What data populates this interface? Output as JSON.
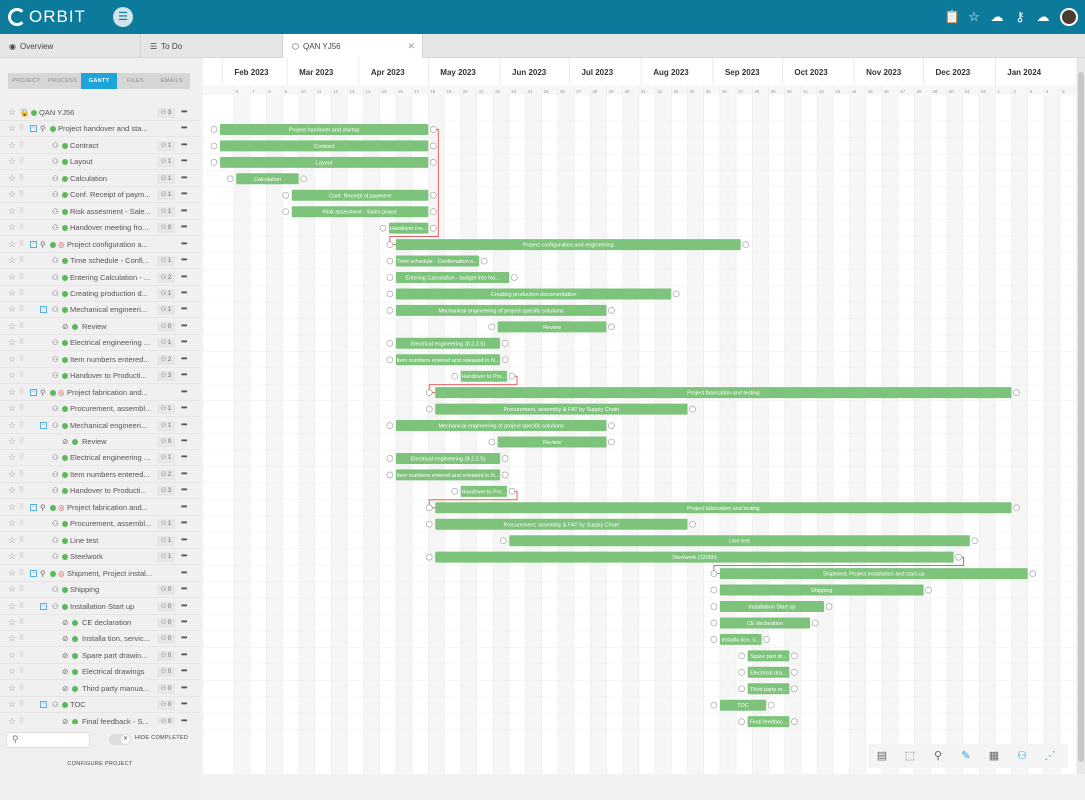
{
  "app": {
    "logo_text": "ORBIT",
    "accent": "#0b7a9b",
    "bar_color": "#7dc37b",
    "link_color": "#e05050"
  },
  "header_icons": [
    "clipboard-icon",
    "star-icon",
    "cloud-icon",
    "key-icon",
    "cloud-upload-icon"
  ],
  "tabs": [
    {
      "label": "Overview",
      "icon": "eye-icon"
    },
    {
      "label": "To Do",
      "icon": "list-icon"
    },
    {
      "label": "QAN YJ56",
      "icon": "cube-icon",
      "active": true
    }
  ],
  "subtabs": [
    "PROJECT",
    "PROCESS",
    "GANTT",
    "FILES",
    "EMAILS"
  ],
  "active_subtab": "GANTT",
  "months": [
    "Feb 2023",
    "Mar 2023",
    "Apr 2023",
    "May 2023",
    "Jun 2023",
    "Jul 2023",
    "Aug 2023",
    "Sep 2023",
    "Oct 2023",
    "Nov 2023",
    "Dec 2023",
    "Jan 2024"
  ],
  "weeks": [
    "6",
    "7",
    "8",
    "9",
    "10",
    "11",
    "12",
    "13",
    "14",
    "15",
    "16",
    "17",
    "18",
    "19",
    "20",
    "21",
    "22",
    "23",
    "24",
    "25",
    "26",
    "27",
    "28",
    "29",
    "30",
    "31",
    "32",
    "33",
    "34",
    "35",
    "36",
    "37",
    "38",
    "39",
    "40",
    "41",
    "42",
    "43",
    "44",
    "45",
    "46",
    "47",
    "48",
    "49",
    "50",
    "51",
    "52",
    "1",
    "2",
    "3",
    "4",
    "5"
  ],
  "rows": [
    {
      "label": "QAN YJ56",
      "count": "3",
      "indent": 0,
      "kind": "project"
    },
    {
      "label": "Project handover and sta...",
      "count": "",
      "indent": 1,
      "kind": "phase"
    },
    {
      "label": "Contract",
      "count": "1",
      "indent": 2,
      "kind": "task"
    },
    {
      "label": "Layout",
      "count": "1",
      "indent": 2,
      "kind": "task"
    },
    {
      "label": "Calculation",
      "count": "1",
      "indent": 2,
      "kind": "task"
    },
    {
      "label": "Conf. Receipt of paym...",
      "count": "1",
      "indent": 2,
      "kind": "task"
    },
    {
      "label": "Risk assesment - Sale...",
      "count": "1",
      "indent": 2,
      "kind": "task"
    },
    {
      "label": "Handover meeting fro...",
      "count": "0",
      "indent": 2,
      "kind": "task"
    },
    {
      "label": "Project configuration a...",
      "count": "",
      "indent": 1,
      "kind": "phase-red"
    },
    {
      "label": "Time schedule - Confi...",
      "count": "1",
      "indent": 2,
      "kind": "task"
    },
    {
      "label": "Entering Calculation - ...",
      "count": "2",
      "indent": 2,
      "kind": "task"
    },
    {
      "label": "Creating production d...",
      "count": "1",
      "indent": 2,
      "kind": "task"
    },
    {
      "label": "Mechanical engineeri...",
      "count": "1",
      "indent": 2,
      "kind": "subphase"
    },
    {
      "label": "Review",
      "count": "0",
      "indent": 3,
      "kind": "review"
    },
    {
      "label": "Electrical engineering ...",
      "count": "1",
      "indent": 2,
      "kind": "task"
    },
    {
      "label": "Item numbers entered...",
      "count": "2",
      "indent": 2,
      "kind": "task"
    },
    {
      "label": "Handover to Producti...",
      "count": "3",
      "indent": 2,
      "kind": "task"
    },
    {
      "label": "Project fabrication and...",
      "count": "",
      "indent": 1,
      "kind": "phase-red"
    },
    {
      "label": "Procurement, assembl...",
      "count": "1",
      "indent": 2,
      "kind": "task"
    },
    {
      "label": "Mechanical engineeri...",
      "count": "1",
      "indent": 2,
      "kind": "subphase"
    },
    {
      "label": "Review",
      "count": "0",
      "indent": 3,
      "kind": "review"
    },
    {
      "label": "Electrical engineering ...",
      "count": "1",
      "indent": 2,
      "kind": "task"
    },
    {
      "label": "Item numbers entered...",
      "count": "2",
      "indent": 2,
      "kind": "task"
    },
    {
      "label": "Handover to Producti...",
      "count": "3",
      "indent": 2,
      "kind": "task"
    },
    {
      "label": "Project fabrication and...",
      "count": "",
      "indent": 1,
      "kind": "phase-red"
    },
    {
      "label": "Procurement, assembl...",
      "count": "1",
      "indent": 2,
      "kind": "task"
    },
    {
      "label": "Line test",
      "count": "1",
      "indent": 2,
      "kind": "task"
    },
    {
      "label": "Steelwork",
      "count": "1",
      "indent": 2,
      "kind": "task"
    },
    {
      "label": "Shipment, Project instal...",
      "count": "",
      "indent": 1,
      "kind": "phase-red"
    },
    {
      "label": "Shipping",
      "count": "0",
      "indent": 2,
      "kind": "task"
    },
    {
      "label": "Installation Start up",
      "count": "0",
      "indent": 2,
      "kind": "subphase"
    },
    {
      "label": "CE declaration",
      "count": "0",
      "indent": 3,
      "kind": "review"
    },
    {
      "label": "Installa tion, servic...",
      "count": "0",
      "indent": 3,
      "kind": "review"
    },
    {
      "label": "Spare part drawin...",
      "count": "0",
      "indent": 3,
      "kind": "review"
    },
    {
      "label": "Electrical drawings",
      "count": "0",
      "indent": 3,
      "kind": "review"
    },
    {
      "label": "Third party manua...",
      "count": "0",
      "indent": 3,
      "kind": "review"
    },
    {
      "label": "TOC",
      "count": "0",
      "indent": 2,
      "kind": "subphase"
    },
    {
      "label": "Final feedback - S...",
      "count": "0",
      "indent": 3,
      "kind": "review"
    }
  ],
  "bars": [
    {
      "row": 1,
      "start": "2023-01-31",
      "end": "2023-05-01",
      "label": "Project handover and startup"
    },
    {
      "row": 2,
      "start": "2023-01-31",
      "end": "2023-05-01",
      "label": "Contract"
    },
    {
      "row": 3,
      "start": "2023-01-31",
      "end": "2023-05-01",
      "label": "Layout"
    },
    {
      "row": 4,
      "start": "2023-02-07",
      "end": "2023-03-06",
      "label": "Calculation"
    },
    {
      "row": 5,
      "start": "2023-03-03",
      "end": "2023-05-01",
      "label": "Conf. Receipt of payment"
    },
    {
      "row": 6,
      "start": "2023-03-03",
      "end": "2023-05-01",
      "label": "Risk assesment - Sales phase"
    },
    {
      "row": 7,
      "start": "2023-04-14",
      "end": "2023-05-01",
      "label": "Handover me..."
    },
    {
      "row": 8,
      "start": "2023-04-17",
      "end": "2023-09-13",
      "label": "Project configuration and engineering"
    },
    {
      "row": 9,
      "start": "2023-04-17",
      "end": "2023-05-23",
      "label": "Time schedule - Confirmation o..."
    },
    {
      "row": 10,
      "start": "2023-04-17",
      "end": "2023-06-05",
      "label": "Entering Calculation - budget into Na..."
    },
    {
      "row": 11,
      "start": "2023-04-17",
      "end": "2023-08-14",
      "label": "Creating production documentation"
    },
    {
      "row": 12,
      "start": "2023-04-17",
      "end": "2023-07-17",
      "label": "Mechanical engineering of project specific solutions"
    },
    {
      "row": 13,
      "start": "2023-05-31",
      "end": "2023-07-17",
      "label": "Review"
    },
    {
      "row": 14,
      "start": "2023-04-17",
      "end": "2023-06-01",
      "label": "Electrical engineering (8.2.2.5)"
    },
    {
      "row": 15,
      "start": "2023-04-17",
      "end": "2023-06-01",
      "label": "Item numbers entered and released in N..."
    },
    {
      "row": 16,
      "start": "2023-05-15",
      "end": "2023-06-04",
      "label": "Handover to Pro..."
    },
    {
      "row": 17,
      "start": "2023-05-04",
      "end": "2024-01-08",
      "label": "Project fabrication and testing"
    },
    {
      "row": 18,
      "start": "2023-05-04",
      "end": "2023-08-21",
      "label": "Procurement, assembly & FAT by Supply Chain"
    },
    {
      "row": 19,
      "start": "2023-04-17",
      "end": "2023-07-17",
      "label": "Mechanical engineering of project specific solutions"
    },
    {
      "row": 20,
      "start": "2023-05-31",
      "end": "2023-07-17",
      "label": "Review"
    },
    {
      "row": 21,
      "start": "2023-04-17",
      "end": "2023-06-01",
      "label": "Electrical engineering (8.2.2.5)"
    },
    {
      "row": 22,
      "start": "2023-04-17",
      "end": "2023-06-01",
      "label": "Item numbers entered and released in N..."
    },
    {
      "row": 23,
      "start": "2023-05-15",
      "end": "2023-06-04",
      "label": "Handover to Pro..."
    },
    {
      "row": 24,
      "start": "2023-05-04",
      "end": "2024-01-08",
      "label": "Project fabrication and testing"
    },
    {
      "row": 25,
      "start": "2023-05-04",
      "end": "2023-08-21",
      "label": "Procurement, assembly & FAT by Supply Chain"
    },
    {
      "row": 26,
      "start": "2023-06-05",
      "end": "2023-12-21",
      "label": "Line test"
    },
    {
      "row": 27,
      "start": "2023-05-04",
      "end": "2023-12-14",
      "label": "Steelwork (1200h)"
    },
    {
      "row": 28,
      "start": "2023-09-04",
      "end": "2024-01-15",
      "label": "Shipment, Project installation and start-up"
    },
    {
      "row": 29,
      "start": "2023-09-04",
      "end": "2023-12-01",
      "label": "Shipping"
    },
    {
      "row": 30,
      "start": "2023-09-04",
      "end": "2023-10-19",
      "label": "Installation Start up"
    },
    {
      "row": 31,
      "start": "2023-09-04",
      "end": "2023-10-13",
      "label": "CE declaration"
    },
    {
      "row": 32,
      "start": "2023-09-04",
      "end": "2023-09-22",
      "label": "Installa tion, s..."
    },
    {
      "row": 33,
      "start": "2023-09-16",
      "end": "2023-10-04",
      "label": "Spare part dr..."
    },
    {
      "row": 34,
      "start": "2023-09-16",
      "end": "2023-10-04",
      "label": "Electrical dra..."
    },
    {
      "row": 35,
      "start": "2023-09-16",
      "end": "2023-10-04",
      "label": "Third party m..."
    },
    {
      "row": 36,
      "start": "2023-09-04",
      "end": "2023-09-24",
      "label": "TOC"
    },
    {
      "row": 37,
      "start": "2023-09-16",
      "end": "2023-10-04",
      "label": "Final feedbac..."
    }
  ],
  "links": [
    [
      1,
      8
    ],
    [
      16,
      17
    ],
    [
      23,
      24
    ],
    [
      27,
      28
    ]
  ],
  "search": {
    "placeholder": ""
  },
  "hide_completed_label": "HIDE COMPLETED",
  "configure_label": "CONFIGURE PROJECT",
  "tools": [
    "table-icon",
    "cursor-icon",
    "wrench-icon",
    "pencil-icon",
    "save-icon",
    "users-icon",
    "share-icon"
  ]
}
